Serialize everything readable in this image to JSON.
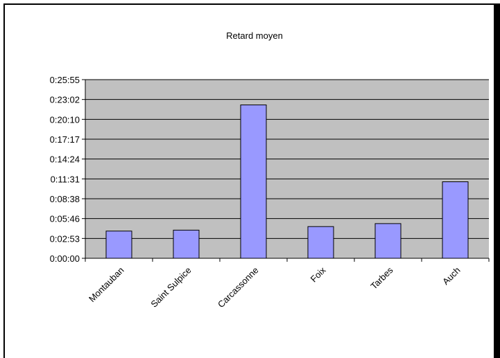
{
  "chart_data": {
    "type": "bar",
    "title": "Retard moyen",
    "xlabel": "",
    "ylabel": "",
    "categories": [
      "Montauban",
      "Saint Sulpice",
      "Carcassonne",
      "Foix",
      "Tarbes",
      "Auch"
    ],
    "values_seconds": [
      237,
      245,
      1335,
      276,
      302,
      666
    ],
    "values": [
      "0:03:57",
      "0:04:05",
      "0:22:15",
      "0:04:36",
      "0:05:02",
      "0:11:06"
    ],
    "y_tick_labels": [
      "0:00:00",
      "0:02:53",
      "0:05:46",
      "0:08:38",
      "0:11:31",
      "0:14:24",
      "0:17:17",
      "0:20:10",
      "0:23:02",
      "0:25:55"
    ],
    "ylim_seconds": [
      0,
      1555
    ],
    "grid": true,
    "legend": "none",
    "colors": {
      "bar": "#9999ff",
      "plot_background": "#c0c0c0",
      "gridline": "#000000"
    }
  }
}
